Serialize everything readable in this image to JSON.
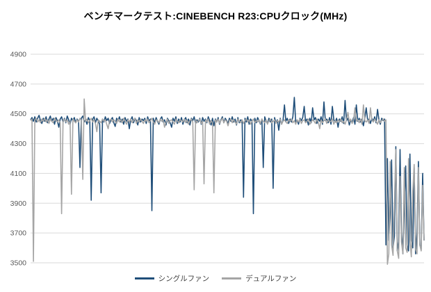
{
  "title": "ベンチマークテスト:CINEBENCH R23:CPUクロック(MHz)",
  "chart_data": {
    "type": "line",
    "title": "ベンチマークテスト:CINEBENCH R23:CPUクロック(MHz)",
    "xlabel": "",
    "ylabel": "CPUクロック (MHz)",
    "ylim": [
      3500,
      4900
    ],
    "yticks": [
      4900,
      4700,
      4500,
      4300,
      4100,
      3900,
      3700,
      3500
    ],
    "grid": "horizontal",
    "legend_position": "bottom",
    "x_axis_labels_visible": false,
    "colors": {
      "gridline": "#d9d9d9",
      "tick_label": "#595959",
      "title": "#000000"
    },
    "series": [
      {
        "name": "シングルファン",
        "color": "#1f4e79",
        "values": [
          4460,
          4475,
          4450,
          4480,
          4445,
          4470,
          4490,
          4455,
          4435,
          4470,
          4450,
          4480,
          4440,
          4465,
          4485,
          4450,
          4470,
          4430,
          4475,
          4455,
          4410,
          4465,
          4480,
          4445,
          4470,
          4440,
          4485,
          4460,
          4430,
          4470,
          4455,
          4475,
          4440,
          4465,
          4450,
          4140,
          4470,
          4485,
          4445,
          4460,
          4430,
          4475,
          4455,
          3920,
          4465,
          4480,
          4440,
          4470,
          4450,
          4430,
          3970,
          4465,
          4445,
          4480,
          4455,
          4470,
          4435,
          4460,
          4475,
          4440,
          4415,
          4470,
          4455,
          4480,
          4445,
          4465,
          4430,
          4475,
          4450,
          4465,
          4400,
          4460,
          4480,
          4440,
          4470,
          4455,
          4425,
          4475,
          4445,
          4465,
          4455,
          4470,
          4435,
          4480,
          4450,
          4465,
          3850,
          4470,
          4440,
          4475,
          4450,
          4430,
          4465,
          4480,
          4445,
          4460,
          4425,
          4470,
          4455,
          4440,
          4410,
          4470,
          4450,
          4480,
          4435,
          4465,
          4445,
          4475,
          4430,
          4460,
          4475,
          4440,
          4465,
          4425,
          4470,
          4455,
          4480,
          4435,
          4460,
          4445,
          4470,
          4430,
          4475,
          4450,
          4465,
          4440,
          4480,
          4455,
          4425,
          4470,
          4420,
          4465,
          4445,
          4475,
          4430,
          4460,
          4480,
          4440,
          4470,
          4455,
          4435,
          4470,
          4450,
          4480,
          4445,
          4465,
          4425,
          4475,
          4440,
          4460,
          4450,
          3940,
          4470,
          4445,
          4480,
          4430,
          4465,
          4450,
          3830,
          4470,
          4440,
          4475,
          4455,
          4430,
          4465,
          4140,
          4480,
          4450,
          4435,
          4470,
          4445,
          4465,
          4000,
          4475,
          4440,
          4460,
          4390,
          4470,
          4430,
          4455,
          4560,
          4450,
          4470,
          4435,
          4465,
          4445,
          4480,
          4610,
          4440,
          4460,
          4430,
          4470,
          4455,
          4475,
          4550,
          4445,
          4465,
          4425,
          4470,
          4440,
          4540,
          4460,
          4475,
          4435,
          4465,
          4450,
          4480,
          4430,
          4580,
          4455,
          4465,
          4440,
          4475,
          4430,
          4550,
          4460,
          4445,
          4470,
          4410,
          4465,
          4450,
          4480,
          4435,
          4590,
          4455,
          4470,
          4425,
          4460,
          4440,
          4475,
          4430,
          4560,
          4450,
          4470,
          4445,
          4465,
          4420,
          4475,
          4540,
          4455,
          4465,
          4435,
          4470,
          4450,
          4480,
          4440,
          4530,
          4460,
          4430,
          4470,
          4455,
          4465,
          3620,
          4200,
          3650,
          3850,
          4190,
          3600,
          3680,
          4280,
          3580,
          3640,
          4260,
          3700,
          3560,
          3900,
          4150,
          3620,
          3580,
          4230,
          3650,
          3600,
          4140,
          3560,
          3700,
          4180,
          3620,
          3590,
          4100,
          3650
        ]
      },
      {
        "name": "デュアルファン",
        "color": "#a5a5a5",
        "values": [
          4455,
          4465,
          3510,
          4460,
          4470,
          4445,
          4460,
          4440,
          4465,
          4450,
          4470,
          4445,
          4460,
          4435,
          4465,
          4450,
          4440,
          4470,
          4455,
          4445,
          4460,
          4440,
          3830,
          4455,
          4465,
          4445,
          4460,
          4430,
          4450,
          3960,
          4465,
          4450,
          4440,
          4460,
          4445,
          4470,
          4455,
          4060,
          4600,
          4450,
          4465,
          4440,
          4455,
          4470,
          4445,
          4460,
          4435,
          4380,
          4460,
          4450,
          4440,
          4465,
          4450,
          4460,
          4430,
          4400,
          4455,
          4465,
          4445,
          4460,
          4450,
          4435,
          4465,
          4445,
          4460,
          4440,
          4470,
          4450,
          4430,
          4460,
          4445,
          4465,
          4440,
          4455,
          4470,
          4435,
          4460,
          4445,
          4465,
          4450,
          4435,
          4460,
          4450,
          4465,
          4440,
          4455,
          4470,
          4445,
          4430,
          4460,
          4455,
          4440,
          4465,
          4450,
          4460,
          4410,
          4445,
          4465,
          4435,
          4455,
          4460,
          4445,
          4430,
          4465,
          4450,
          4440,
          4460,
          4455,
          4445,
          4465,
          4440,
          4460,
          4430,
          4455,
          4465,
          4445,
          3990,
          4460,
          4440,
          4455,
          4465,
          4435,
          4450,
          4030,
          4460,
          4445,
          4465,
          4430,
          4455,
          4440,
          3970,
          4460,
          4445,
          4465,
          4435,
          4455,
          4470,
          4440,
          4460,
          4450,
          4420,
          4455,
          4465,
          4440,
          4460,
          4445,
          4430,
          4465,
          4450,
          4440,
          4460,
          4435,
          4455,
          4465,
          4445,
          4460,
          4430,
          4450,
          4465,
          4440,
          4455,
          4445,
          4460,
          4435,
          4465,
          4450,
          4440,
          4460,
          4430,
          4455,
          4465,
          4440,
          4450,
          4460,
          4435,
          4455,
          4445,
          4465,
          4430,
          4450,
          4460,
          4445,
          4435,
          4460,
          4450,
          4465,
          4440,
          4455,
          4430,
          4460,
          4445,
          4465,
          4435,
          4455,
          4460,
          4440,
          4450,
          4465,
          4430,
          4445,
          4460,
          4450,
          4435,
          4465,
          4445,
          4400,
          4460,
          4440,
          4455,
          4465,
          4435,
          4460,
          4445,
          4450,
          4465,
          4430,
          4455,
          4440,
          4460,
          4445,
          4465,
          4440,
          4450,
          4430,
          4460,
          4510,
          4445,
          4465,
          4435,
          4455,
          4540,
          4450,
          4460,
          4440,
          4465,
          4430,
          4560,
          4455,
          4445,
          4460,
          4435,
          4540,
          4460,
          4445,
          4465,
          4450,
          4430,
          4460,
          4440,
          4455,
          4465,
          4450,
          4460,
          3490,
          3560,
          4180,
          3620,
          3550,
          3900,
          4260,
          3580,
          3530,
          4080,
          3640,
          3560,
          4140,
          3600,
          3570,
          4200,
          3650,
          3540,
          3980,
          4160,
          3590,
          3560,
          4140,
          3620,
          3580,
          4020,
          3650
        ]
      }
    ]
  }
}
